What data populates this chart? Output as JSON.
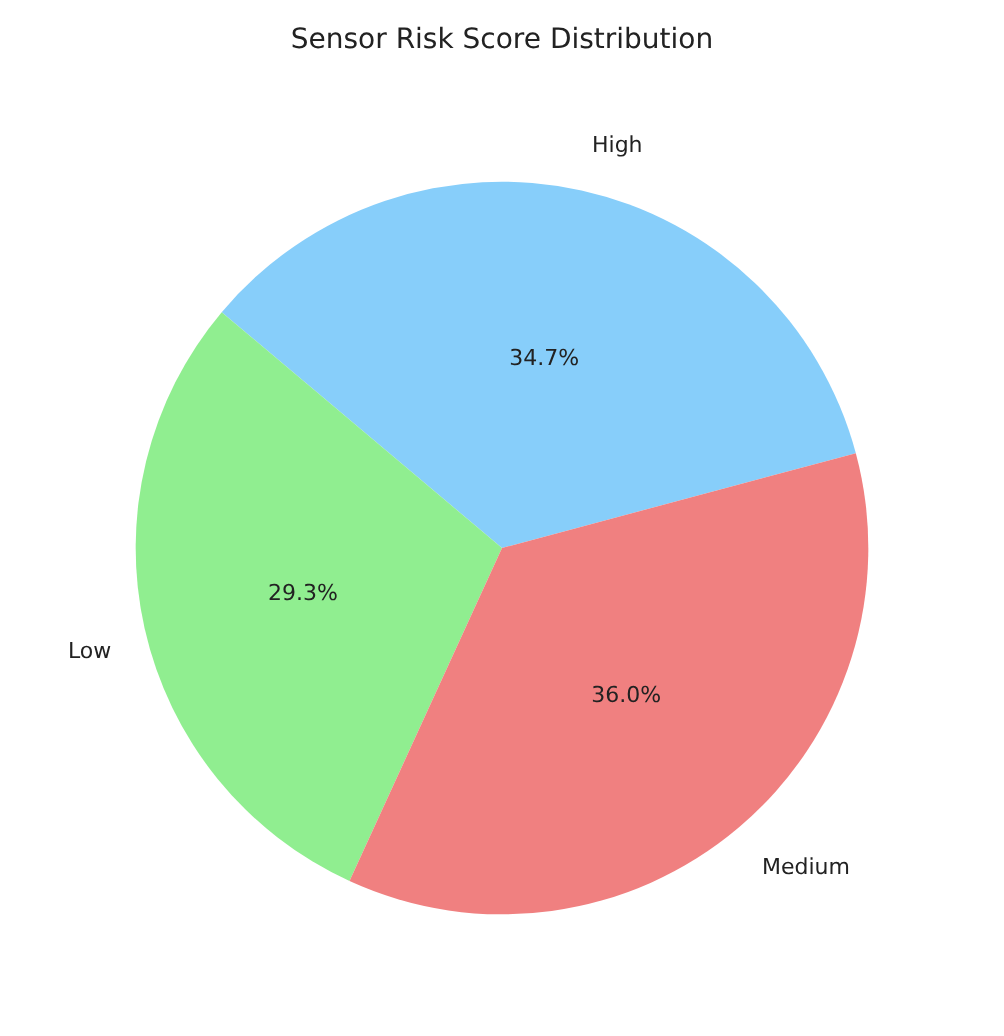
{
  "chart_data": {
    "type": "pie",
    "title": "Sensor Risk Score Distribution",
    "categories": [
      "High",
      "Low",
      "Medium"
    ],
    "values": [
      34.7,
      29.3,
      36.0
    ],
    "value_labels": [
      "34.7%",
      "29.3%",
      "36.0%"
    ],
    "colors": [
      "#87cefa",
      "#90ee90",
      "#f08080"
    ],
    "legend": false
  }
}
